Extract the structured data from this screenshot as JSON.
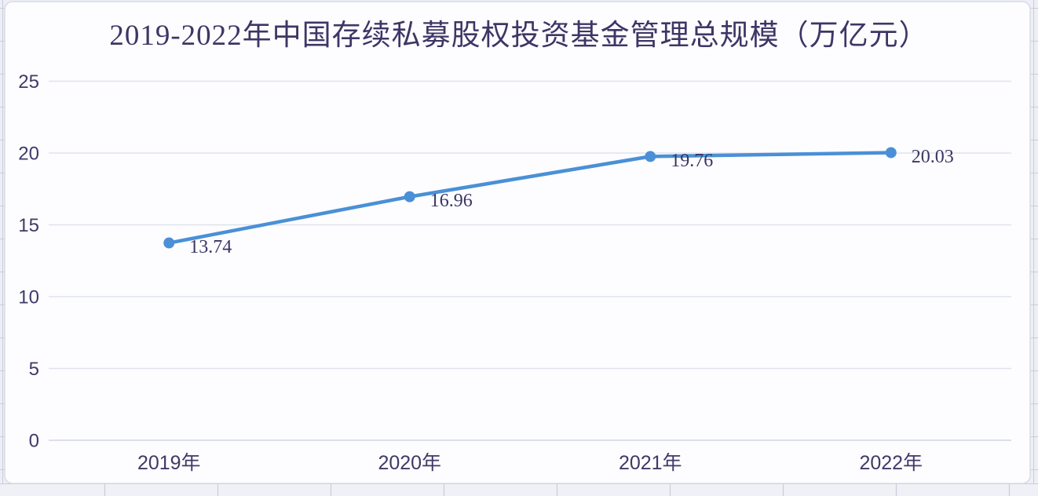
{
  "chart_data": {
    "type": "line",
    "title": "2019-2022年中国存续私募股权投资基金管理总规模（万亿元）",
    "categories": [
      "2019年",
      "2020年",
      "2021年",
      "2022年"
    ],
    "values": [
      13.74,
      16.96,
      19.76,
      20.03
    ],
    "data_labels": [
      "13.74",
      "16.96",
      "19.76",
      "20.03"
    ],
    "xlabel": "",
    "ylabel": "",
    "ylim": [
      0,
      25
    ],
    "yticks": [
      0,
      5,
      10,
      15,
      20,
      25
    ],
    "grid": true,
    "legend": "none",
    "data_label_position": "right",
    "colors": {
      "line": "#4a90d6",
      "marker": "#4a90d6",
      "title_text": "#3d3666",
      "axis_text": "#3e3a68",
      "data_label_text": "#3a3565",
      "gridline": "#dfe3ed",
      "axis_line": "#d2d7e2",
      "chart_fill": "#fdfdff",
      "chart_border": "#d9dce4",
      "sheet_fill": "#edeff6",
      "cell_border": "#c9cdd8",
      "cell_row_fill": "#eff1f6"
    }
  }
}
